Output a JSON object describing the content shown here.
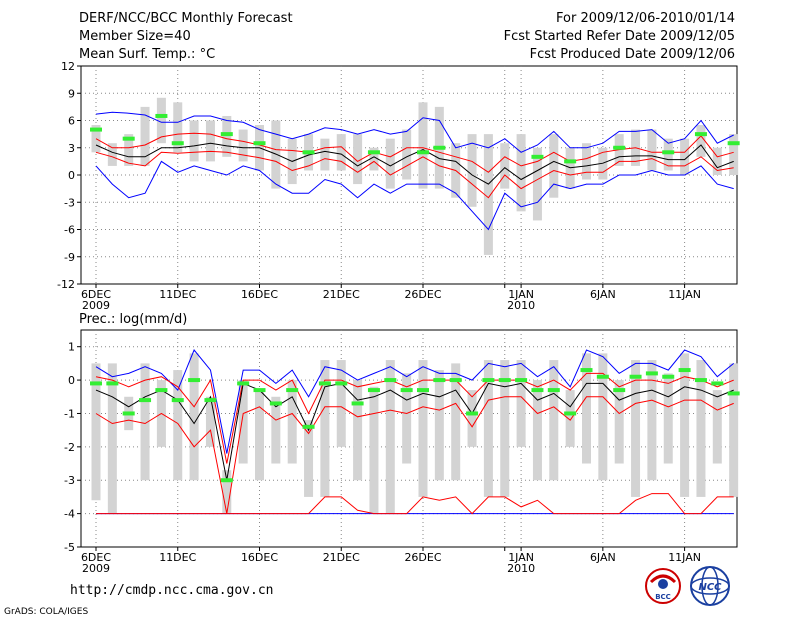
{
  "header": {
    "title": "DERF/NCC/BCC Monthly Forecast",
    "member_size": "Member Size=40",
    "variable": "Mean Surf. Temp.: °C",
    "period": "For 2009/12/06-2010/01/14",
    "started": "Fcst Started Refer Date 2009/12/05",
    "produced": "Fcst Produced Date 2009/12/06"
  },
  "footer": {
    "url": "http://cmdp.ncc.cma.gov.cn",
    "credit": "GrADS: COLA/IGES",
    "logo1_text": "BCC",
    "logo2_text": "NCC"
  },
  "colors": {
    "ensemble_mean": "#000000",
    "spread_inner": "#ff0000",
    "spread_outer": "#0000ff",
    "box": "#d3d3d3",
    "marker": "#33ee33"
  },
  "chart_data": [
    {
      "type": "line",
      "title": "",
      "ylabel": "Mean Surf. Temp. °C",
      "xlabel": "",
      "ylim": [
        -12,
        12
      ],
      "yticks": [
        12,
        9,
        6,
        3,
        0,
        -3,
        -6,
        -9,
        -12
      ],
      "xlabels": [
        {
          "day": 0,
          "label": "6DEC",
          "year": "2009"
        },
        {
          "day": 5,
          "label": "11DEC"
        },
        {
          "day": 10,
          "label": "16DEC"
        },
        {
          "day": 15,
          "label": "21DEC"
        },
        {
          "day": 20,
          "label": "26DEC"
        },
        {
          "day": 25,
          "label": ""
        },
        {
          "day": 26,
          "label": "1JAN",
          "year": "2010"
        },
        {
          "day": 31,
          "label": "6JAN"
        },
        {
          "day": 36,
          "label": "11JAN"
        }
      ],
      "x_days": [
        0,
        1,
        2,
        3,
        4,
        5,
        6,
        7,
        8,
        9,
        10,
        11,
        12,
        13,
        14,
        15,
        16,
        17,
        18,
        19,
        20,
        21,
        22,
        23,
        24,
        25,
        26,
        27,
        28,
        29,
        30,
        31,
        32,
        33,
        34,
        35,
        36,
        37,
        38,
        39
      ],
      "series": [
        {
          "name": "mean",
          "values": [
            3.3,
            2.5,
            2.0,
            2.0,
            3.0,
            3.0,
            3.2,
            3.5,
            3.2,
            3.0,
            3.0,
            2.3,
            1.5,
            2.2,
            2.6,
            2.3,
            1.0,
            2.0,
            1.0,
            2.0,
            2.8,
            1.8,
            1.5,
            0.0,
            -1.0,
            0.8,
            -0.5,
            0.5,
            1.5,
            0.8,
            1.0,
            1.3,
            2.0,
            2.1,
            2.1,
            1.7,
            1.7,
            3.3,
            0.8,
            1.5
          ]
        },
        {
          "name": "inner_upper",
          "values": [
            4.0,
            3.0,
            3.0,
            3.3,
            4.2,
            4.5,
            4.6,
            4.5,
            4.0,
            3.7,
            3.3,
            2.8,
            2.7,
            2.5,
            3.0,
            3.1,
            1.5,
            2.5,
            2.0,
            3.0,
            3.0,
            2.5,
            2.0,
            1.5,
            0.3,
            2.0,
            1.0,
            1.5,
            2.5,
            1.5,
            1.8,
            2.5,
            2.8,
            3.0,
            2.5,
            2.5,
            2.5,
            4.3,
            2.0,
            2.5
          ]
        },
        {
          "name": "inner_lower",
          "values": [
            2.5,
            2.0,
            1.3,
            1.0,
            2.5,
            2.4,
            2.5,
            2.6,
            2.5,
            2.2,
            1.9,
            1.5,
            0.5,
            1.0,
            1.8,
            1.5,
            0.3,
            1.5,
            0.0,
            1.0,
            2.0,
            1.0,
            0.5,
            -1.0,
            -2.5,
            0.0,
            -1.5,
            -0.5,
            0.5,
            0.0,
            0.3,
            0.3,
            1.5,
            1.5,
            1.8,
            1.0,
            1.0,
            2.0,
            0.5,
            0.8
          ]
        },
        {
          "name": "outer_upper",
          "values": [
            6.7,
            6.9,
            6.8,
            6.6,
            5.8,
            5.8,
            6.5,
            6.5,
            6.0,
            5.8,
            5.0,
            4.5,
            4.0,
            4.5,
            5.2,
            5.0,
            4.5,
            5.0,
            4.5,
            4.8,
            6.3,
            6.0,
            3.0,
            3.5,
            3.0,
            4.0,
            2.5,
            3.3,
            4.8,
            3.0,
            3.0,
            3.5,
            4.8,
            4.8,
            5.0,
            3.5,
            4.0,
            6.0,
            3.5,
            4.4
          ]
        },
        {
          "name": "outer_lower",
          "values": [
            1.0,
            -1.0,
            -2.5,
            -2.0,
            1.5,
            0.3,
            1.0,
            0.5,
            0.0,
            1.0,
            0.5,
            -1.0,
            -2.0,
            -2.0,
            -0.5,
            -1.0,
            -2.5,
            -1.0,
            -2.0,
            -1.0,
            -1.0,
            -1.0,
            -2.0,
            -4.0,
            -6.0,
            -2.0,
            -3.5,
            -3.0,
            -1.0,
            -1.5,
            -1.0,
            -1.0,
            0.0,
            0.0,
            0.5,
            0.0,
            0.0,
            1.0,
            -1.0,
            -1.5
          ]
        },
        {
          "name": "box_top",
          "values": [
            5.5,
            3.5,
            4.5,
            7.5,
            8.5,
            8.0,
            6.0,
            6.0,
            6.5,
            5.0,
            5.5,
            6.0,
            4.0,
            4.5,
            4.0,
            4.5,
            4.5,
            3.0,
            4.0,
            5.0,
            8.0,
            7.5,
            3.5,
            4.5,
            4.5,
            3.5,
            4.5,
            3.0,
            4.5,
            3.0,
            3.5,
            3.0,
            4.5,
            5.0,
            5.0,
            4.0,
            4.0,
            5.5,
            3.0,
            4.5
          ]
        },
        {
          "name": "box_bottom",
          "values": [
            2.5,
            1.0,
            1.0,
            1.0,
            3.5,
            2.5,
            1.5,
            1.5,
            2.0,
            1.5,
            0.5,
            -1.5,
            -1.0,
            0.5,
            0.5,
            0.5,
            -1.0,
            0.5,
            -1.5,
            -0.5,
            -1.5,
            -1.5,
            -2.5,
            -3.5,
            -8.8,
            -1.5,
            -4.0,
            -5.0,
            -2.5,
            -1.5,
            -0.5,
            -0.5,
            1.0,
            1.0,
            0.5,
            0.5,
            0.0,
            2.0,
            0.0,
            0.0
          ]
        },
        {
          "name": "marker",
          "values": [
            5.0,
            null,
            4.0,
            null,
            6.5,
            3.5,
            null,
            null,
            4.5,
            null,
            3.5,
            null,
            null,
            2.5,
            null,
            null,
            null,
            2.5,
            null,
            null,
            2.5,
            3.0,
            null,
            null,
            null,
            null,
            null,
            2.0,
            null,
            1.5,
            null,
            null,
            3.0,
            null,
            null,
            2.5,
            null,
            4.5,
            null,
            3.5
          ]
        }
      ]
    },
    {
      "type": "line",
      "title": "Prec.: log(mm/d)",
      "ylabel": "Prec. log(mm/d)",
      "xlabel": "",
      "ylim": [
        -5,
        1.5
      ],
      "yticks": [
        1,
        0,
        -1,
        -2,
        -3,
        -4,
        -5
      ],
      "xlabels": [
        {
          "day": 0,
          "label": "6DEC",
          "year": "2009"
        },
        {
          "day": 5,
          "label": "11DEC"
        },
        {
          "day": 10,
          "label": "16DEC"
        },
        {
          "day": 15,
          "label": "21DEC"
        },
        {
          "day": 20,
          "label": "26DEC"
        },
        {
          "day": 25,
          "label": ""
        },
        {
          "day": 26,
          "label": "1JAN",
          "year": "2010"
        },
        {
          "day": 31,
          "label": "6JAN"
        },
        {
          "day": 36,
          "label": "11JAN"
        }
      ],
      "x_days": [
        0,
        1,
        2,
        3,
        4,
        5,
        6,
        7,
        8,
        9,
        10,
        11,
        12,
        13,
        14,
        15,
        16,
        17,
        18,
        19,
        20,
        21,
        22,
        23,
        24,
        25,
        26,
        27,
        28,
        29,
        30,
        31,
        32,
        33,
        34,
        35,
        36,
        37,
        38,
        39
      ],
      "series": [
        {
          "name": "mean",
          "values": [
            -0.3,
            -0.5,
            -0.8,
            -0.5,
            -0.3,
            -0.6,
            -1.3,
            -0.5,
            -3.0,
            -0.1,
            -0.3,
            -0.8,
            -0.5,
            -1.5,
            -0.2,
            -0.1,
            -0.6,
            -0.5,
            -0.3,
            -0.6,
            -0.4,
            -0.5,
            -0.3,
            -1.0,
            -0.1,
            -0.2,
            -0.1,
            -0.6,
            -0.4,
            -0.8,
            -0.1,
            -0.1,
            -0.6,
            -0.4,
            -0.3,
            -0.5,
            -0.2,
            -0.3,
            -0.5,
            -0.3
          ]
        },
        {
          "name": "inner_upper",
          "values": [
            0.1,
            0.0,
            -0.2,
            0.0,
            0.1,
            -0.2,
            -0.8,
            0.0,
            -2.5,
            0.0,
            0.0,
            -0.3,
            0.0,
            -1.0,
            0.0,
            0.0,
            -0.2,
            -0.1,
            0.0,
            -0.2,
            0.0,
            0.0,
            0.0,
            -0.5,
            0.0,
            0.0,
            0.0,
            -0.2,
            0.0,
            -0.3,
            0.2,
            0.2,
            -0.2,
            0.0,
            0.0,
            -0.1,
            0.1,
            0.0,
            -0.2,
            0.0
          ]
        },
        {
          "name": "inner_lower",
          "values": [
            -1.0,
            -1.3,
            -1.2,
            -1.3,
            -1.0,
            -1.3,
            -2.0,
            -1.5,
            -4.0,
            -1.0,
            -0.8,
            -1.2,
            -1.0,
            -1.6,
            -0.8,
            -0.8,
            -1.1,
            -1.0,
            -0.9,
            -1.0,
            -0.8,
            -0.9,
            -0.7,
            -1.4,
            -0.6,
            -0.5,
            -0.5,
            -1.0,
            -0.8,
            -1.2,
            -0.5,
            -0.5,
            -1.0,
            -0.7,
            -0.6,
            -0.8,
            -0.6,
            -0.6,
            -0.9,
            -0.7
          ]
        },
        {
          "name": "outer_upper",
          "values": [
            0.4,
            0.1,
            0.2,
            0.4,
            0.2,
            -0.3,
            0.9,
            0.3,
            -2.2,
            0.3,
            0.3,
            -0.1,
            0.3,
            -0.5,
            0.4,
            0.3,
            0.0,
            0.2,
            0.4,
            0.1,
            0.4,
            0.2,
            0.2,
            0.0,
            0.5,
            0.4,
            0.5,
            0.1,
            0.4,
            -0.2,
            0.9,
            0.7,
            0.2,
            0.5,
            0.5,
            0.3,
            0.9,
            0.7,
            0.1,
            0.5
          ]
        },
        {
          "name": "outer_lower",
          "values": [
            -4.0,
            -4.0,
            -4.0,
            -4.0,
            -4.0,
            -4.0,
            -4.0,
            -4.0,
            -4.0,
            -4.0,
            -4.0,
            -4.0,
            -4.0,
            -4.0,
            -4.0,
            -4.0,
            -4.0,
            -4.0,
            -4.0,
            -4.0,
            -4.0,
            -4.0,
            -4.0,
            -4.0,
            -4.0,
            -4.0,
            -4.0,
            -4.0,
            -4.0,
            -4.0,
            -4.0,
            -4.0,
            -4.0,
            -4.0,
            -4.0,
            -4.0,
            -4.0,
            -4.0,
            -4.0,
            -4.0
          ]
        },
        {
          "name": "red_bottom",
          "values": [
            -4.0,
            -4.0,
            -4.0,
            -4.0,
            -4.0,
            -4.0,
            -4.0,
            -4.0,
            -4.0,
            -4.0,
            -4.0,
            -4.0,
            -4.0,
            -4.0,
            -3.5,
            -3.5,
            -3.9,
            -4.0,
            -4.0,
            -4.0,
            -3.5,
            -3.6,
            -3.5,
            -4.0,
            -3.5,
            -3.5,
            -3.8,
            -3.6,
            -4.0,
            -4.0,
            -4.0,
            -4.0,
            -4.0,
            -3.6,
            -3.4,
            -3.4,
            -4.0,
            -4.0,
            -3.5,
            -3.5
          ]
        },
        {
          "name": "box_top",
          "values": [
            0.5,
            0.5,
            -0.5,
            0.5,
            0.0,
            0.3,
            0.8,
            -0.5,
            -2.7,
            0.0,
            -0.3,
            -0.5,
            0.0,
            -1.2,
            0.6,
            0.6,
            0.0,
            -0.2,
            0.6,
            0.2,
            0.6,
            0.3,
            0.5,
            -0.3,
            0.6,
            0.6,
            0.6,
            0.0,
            0.6,
            -0.3,
            0.8,
            0.8,
            0.0,
            0.6,
            0.6,
            0.2,
            0.8,
            0.6,
            -0.3,
            0.5
          ]
        },
        {
          "name": "box_bottom",
          "values": [
            -3.6,
            -4.0,
            -1.5,
            -3.0,
            -2.0,
            -3.0,
            -3.0,
            -2.0,
            -4.0,
            -2.5,
            -3.0,
            -2.5,
            -2.5,
            -3.5,
            -3.5,
            -2.0,
            -3.0,
            -4.0,
            -4.0,
            -2.5,
            -3.5,
            -3.0,
            -3.0,
            -2.0,
            -3.5,
            -3.5,
            -2.0,
            -3.0,
            -3.0,
            -2.0,
            -2.5,
            -3.0,
            -2.5,
            -3.5,
            -3.0,
            -2.5,
            -3.5,
            -3.5,
            -2.5,
            -3.5
          ]
        },
        {
          "name": "marker",
          "values": [
            -0.1,
            -0.1,
            -1.0,
            -0.6,
            -0.3,
            -0.6,
            0.0,
            -0.6,
            -3.0,
            -0.1,
            -0.3,
            -0.7,
            -0.3,
            -1.4,
            -0.1,
            -0.1,
            -0.7,
            -0.3,
            0.0,
            -0.3,
            -0.3,
            0.0,
            0.0,
            -1.0,
            0.0,
            0.0,
            0.0,
            -0.3,
            -0.3,
            -1.0,
            0.3,
            0.1,
            -0.3,
            0.1,
            0.2,
            0.1,
            0.3,
            0.0,
            -0.1,
            -0.4
          ]
        }
      ]
    }
  ]
}
